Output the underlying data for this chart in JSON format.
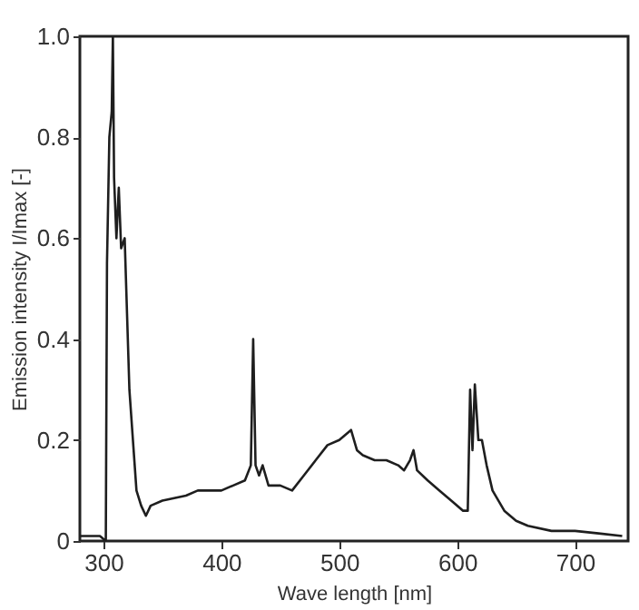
{
  "chart_data": {
    "type": "line",
    "xlabel": "Wave length   [nm]",
    "ylabel": "Emission intensity I/Imax [-]",
    "xlim": [
      280,
      745
    ],
    "xticks": [
      300,
      400,
      500,
      600,
      700
    ],
    "ylim": [
      0,
      1
    ],
    "yticks": [
      0,
      {
        "value": 0.2,
        "label": "0.2"
      },
      {
        "value": 0.4,
        "label": "0.4"
      },
      {
        "value": 0.6,
        "label": "0.6"
      },
      {
        "value": 0.8,
        "label": "0.8"
      },
      {
        "value": 1,
        "label": "1.0"
      }
    ],
    "grid": false,
    "marker": "none",
    "line_style": "solid",
    "series": [
      {
        "color": "#1e1e1e",
        "x": [
          280,
          297,
          302,
          303,
          305,
          307,
          308,
          309,
          311,
          313,
          315,
          318,
          320,
          322,
          325,
          328,
          332,
          336,
          340,
          350,
          360,
          370,
          380,
          390,
          400,
          410,
          420,
          425,
          427,
          429,
          432,
          435,
          440,
          450,
          460,
          470,
          480,
          490,
          500,
          510,
          515,
          520,
          530,
          540,
          550,
          555,
          560,
          563,
          566,
          575,
          585,
          595,
          605,
          609,
          611,
          613,
          615,
          618,
          621,
          625,
          630,
          640,
          650,
          660,
          680,
          700,
          720,
          740
        ],
        "values": [
          0.01,
          0.01,
          0.0,
          0.55,
          0.8,
          0.85,
          1.0,
          0.72,
          0.6,
          0.7,
          0.58,
          0.6,
          0.45,
          0.3,
          0.2,
          0.1,
          0.07,
          0.05,
          0.07,
          0.08,
          0.085,
          0.09,
          0.1,
          0.1,
          0.1,
          0.11,
          0.12,
          0.15,
          0.4,
          0.15,
          0.13,
          0.15,
          0.11,
          0.11,
          0.1,
          0.13,
          0.16,
          0.19,
          0.2,
          0.22,
          0.18,
          0.17,
          0.16,
          0.16,
          0.15,
          0.14,
          0.16,
          0.18,
          0.14,
          0.12,
          0.1,
          0.08,
          0.06,
          0.06,
          0.3,
          0.18,
          0.31,
          0.2,
          0.2,
          0.15,
          0.1,
          0.06,
          0.04,
          0.03,
          0.02,
          0.02,
          0.015,
          0.01
        ]
      }
    ]
  }
}
